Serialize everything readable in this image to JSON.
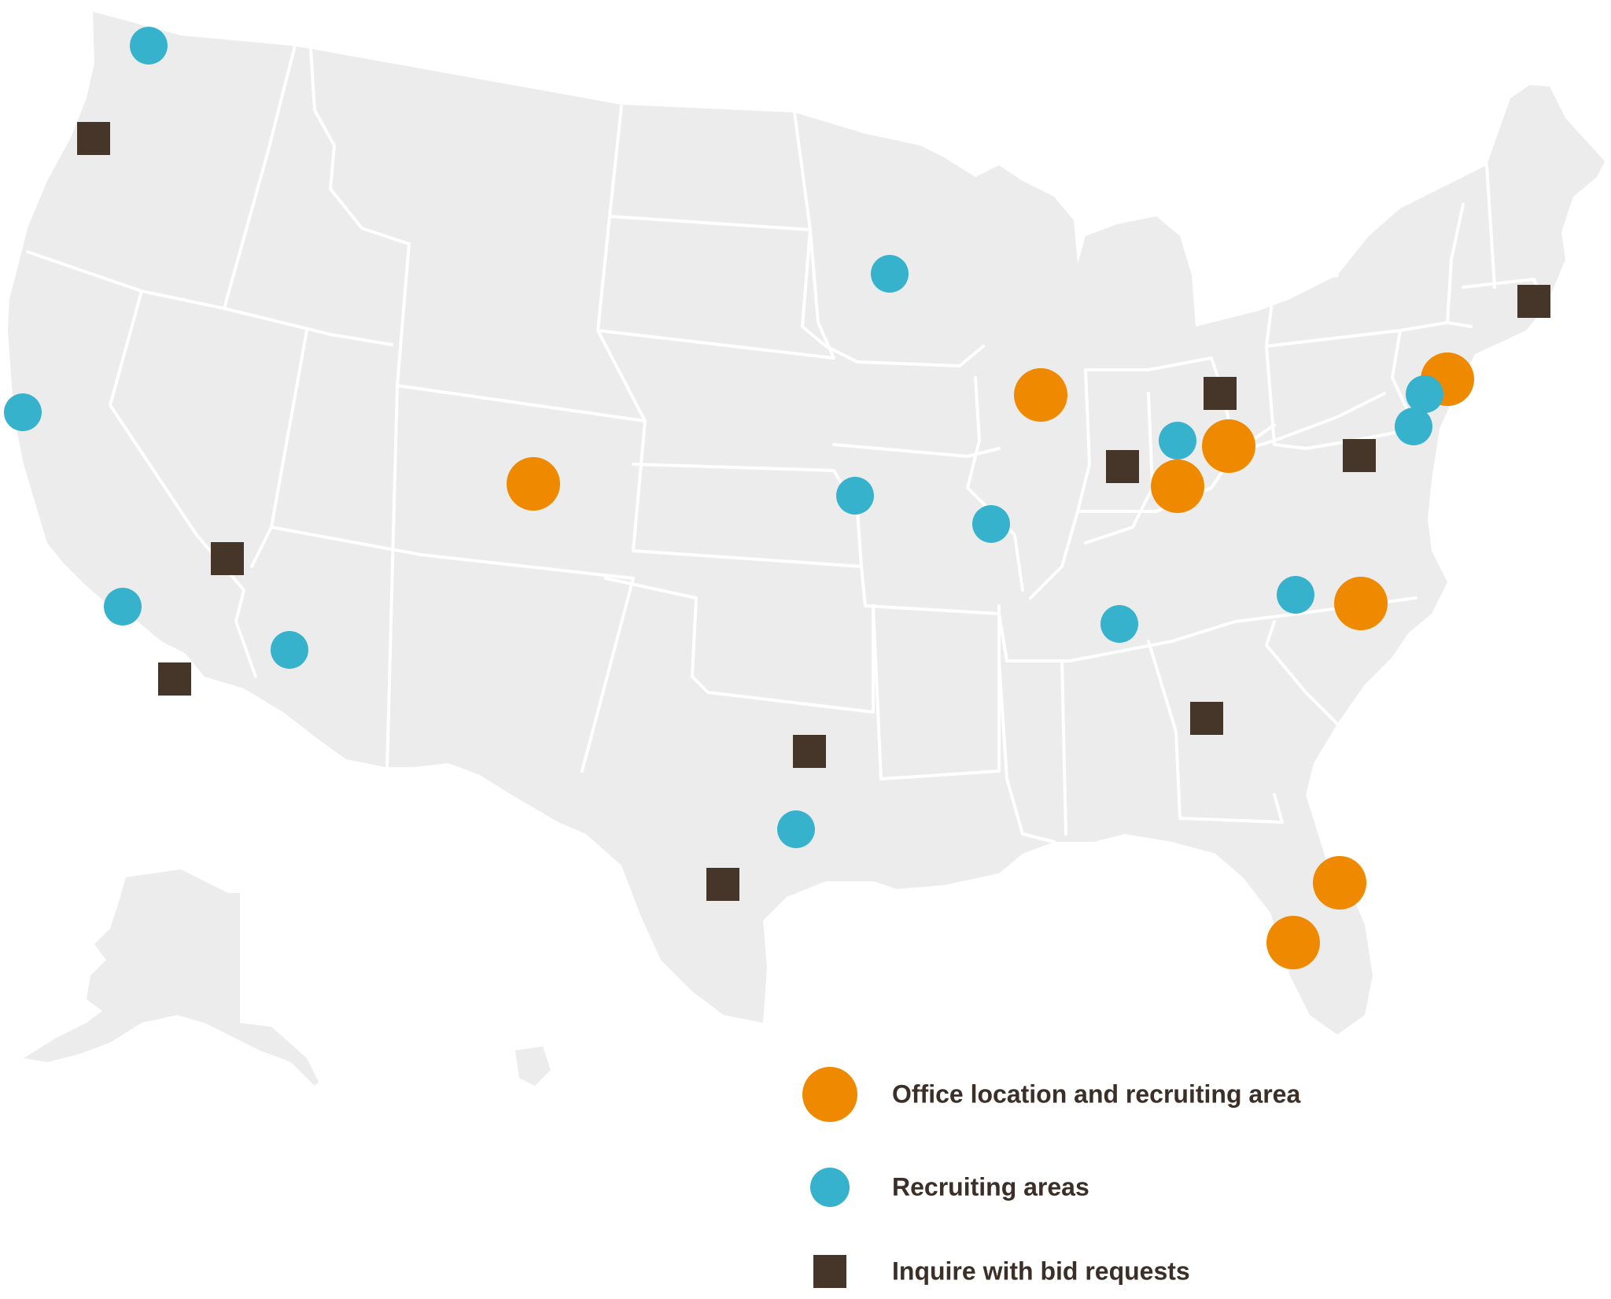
{
  "colors": {
    "office": "#ef8a00",
    "recruiting": "#36b2cc",
    "inquire": "#46362a",
    "land": "#ececec",
    "border": "#ffffff",
    "text": "#3b2f27"
  },
  "legend": {
    "items": [
      {
        "key": "office",
        "label": "Office location and recruiting area",
        "icon": "orange-circle-icon"
      },
      {
        "key": "recruiting",
        "label": "Recruiting areas",
        "icon": "teal-circle-icon"
      },
      {
        "key": "inquire",
        "label": "Inquire with bid requests",
        "icon": "brown-square-icon"
      }
    ]
  },
  "markers": {
    "office": [
      {
        "place": "Colorado"
      },
      {
        "place": "Northern Illinois"
      },
      {
        "place": "Central Ohio"
      },
      {
        "place": "Southern Ohio"
      },
      {
        "place": "New Jersey"
      },
      {
        "place": "North Carolina"
      },
      {
        "place": "Northeast Florida"
      },
      {
        "place": "Central Florida"
      }
    ],
    "recruiting": [
      {
        "place": "Washington"
      },
      {
        "place": "Northern California"
      },
      {
        "place": "Southern California"
      },
      {
        "place": "Arizona"
      },
      {
        "place": "Minnesota"
      },
      {
        "place": "Kansas City"
      },
      {
        "place": "St. Louis"
      },
      {
        "place": "Ohio"
      },
      {
        "place": "Tennessee"
      },
      {
        "place": "Virginia"
      },
      {
        "place": "Pennsylvania"
      },
      {
        "place": "Maryland"
      },
      {
        "place": "Texas"
      }
    ],
    "inquire": [
      {
        "place": "Oregon"
      },
      {
        "place": "Nevada"
      },
      {
        "place": "Southern California"
      },
      {
        "place": "Indiana"
      },
      {
        "place": "Northern Ohio"
      },
      {
        "place": "Virginia"
      },
      {
        "place": "Massachusetts"
      },
      {
        "place": "Georgia"
      },
      {
        "place": "North Texas"
      },
      {
        "place": "South Texas"
      }
    ]
  }
}
